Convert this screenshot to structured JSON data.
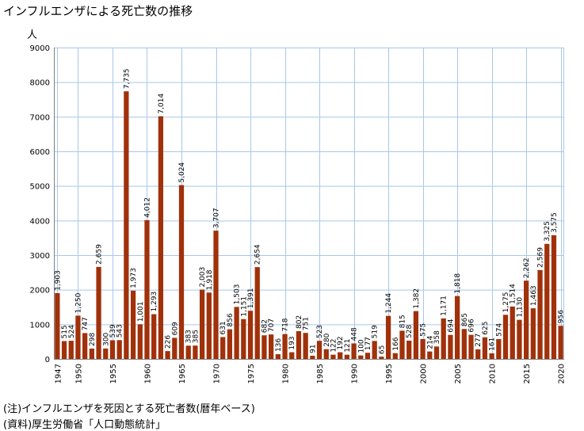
{
  "title": "インフルエンザによる死亡数の推移",
  "unit": "人",
  "notes": [
    "(注)インフルエンザを死因とする死亡者数(暦年ベース)",
    "(資料)厚生労働省「人口動態統計」"
  ],
  "colors": {
    "bar": "#a0310a",
    "grid": "#a9c7ea",
    "axis": "#808080"
  },
  "chart_data": {
    "type": "bar",
    "title": "インフルエンザによる死亡数の推移",
    "xlabel": "",
    "ylabel": "人",
    "ylim": [
      0,
      9000
    ],
    "yticks": [
      0,
      1000,
      2000,
      3000,
      4000,
      5000,
      6000,
      7000,
      8000,
      9000
    ],
    "grid": true,
    "categories": [
      1947,
      1948,
      1949,
      1950,
      1951,
      1952,
      1953,
      1954,
      1955,
      1956,
      1957,
      1958,
      1959,
      1960,
      1961,
      1962,
      1963,
      1964,
      1965,
      1966,
      1967,
      1968,
      1969,
      1970,
      1971,
      1972,
      1973,
      1974,
      1975,
      1976,
      1977,
      1978,
      1979,
      1980,
      1981,
      1982,
      1983,
      1984,
      1985,
      1986,
      1987,
      1988,
      1989,
      1990,
      1991,
      1992,
      1993,
      1994,
      1995,
      1996,
      1997,
      1998,
      1999,
      2000,
      2001,
      2002,
      2003,
      2004,
      2005,
      2006,
      2007,
      2008,
      2009,
      2010,
      2011,
      2012,
      2013,
      2014,
      2015,
      2016,
      2017,
      2018,
      2019,
      2020
    ],
    "xtick_labels": [
      1947,
      1950,
      1955,
      1960,
      1965,
      1970,
      1975,
      1980,
      1985,
      1990,
      1995,
      2000,
      2005,
      2010,
      2015,
      2020
    ],
    "values": [
      1903,
      515,
      524,
      1250,
      747,
      298,
      2659,
      300,
      539,
      543,
      7735,
      1973,
      1001,
      4012,
      1293,
      7014,
      226,
      609,
      5024,
      383,
      385,
      2003,
      1918,
      3707,
      631,
      856,
      1503,
      1151,
      1391,
      2654,
      682,
      707,
      136,
      718,
      193,
      802,
      751,
      91,
      523,
      280,
      122,
      192,
      121,
      448,
      100,
      177,
      519,
      65,
      1244,
      166,
      815,
      528,
      1382,
      575,
      214,
      358,
      1171,
      694,
      1818,
      865,
      696,
      277,
      625,
      161,
      574,
      1275,
      1514,
      1130,
      2262,
      1463,
      2569,
      3325,
      3575,
      956
    ],
    "labels": [
      "1,903",
      "515",
      "524",
      "1,250",
      "747",
      "298",
      "2,659",
      "300",
      "539",
      "543",
      "7,735",
      "1,973",
      "1,001",
      "4,012",
      "1,293",
      "7,014",
      "226",
      "609",
      "5,024",
      "383",
      "385",
      "2,003",
      "1,918",
      "3,707",
      "631",
      "856",
      "1,503",
      "1,151",
      "1,391",
      "2,654",
      "682",
      "707",
      "136",
      "718",
      "193",
      "802",
      "751",
      "91",
      "523",
      "280",
      "122",
      "192",
      "121",
      "448",
      "100",
      "177",
      "519",
      "65",
      "1,244",
      "166",
      "815",
      "528",
      "1,382",
      "575",
      "214",
      "358",
      "1,171",
      "694",
      "1,818",
      "865",
      "696",
      "277",
      "625",
      "161",
      "574",
      "1,275",
      "1,514",
      "1,130",
      "2,262",
      "1,463",
      "2,569",
      "3,325",
      "3,575",
      "956"
    ]
  }
}
